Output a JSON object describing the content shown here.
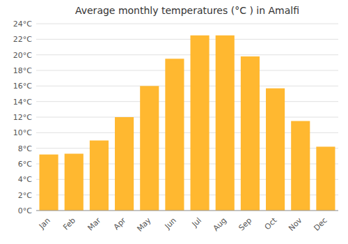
{
  "chart_data": {
    "type": "bar",
    "title": "Average monthly temperatures (°C ) in Amalfi",
    "categories": [
      "Jan",
      "Feb",
      "Mar",
      "Apr",
      "May",
      "Jun",
      "Jul",
      "Aug",
      "Sep",
      "Oct",
      "Nov",
      "Dec"
    ],
    "values": [
      7.2,
      7.3,
      9.0,
      12.0,
      16.0,
      19.5,
      22.5,
      22.5,
      19.8,
      15.7,
      11.5,
      8.2
    ],
    "color": "#FFB830",
    "ylim": [
      0,
      24
    ],
    "yticks": [
      {
        "value": 0,
        "label": "0°C"
      },
      {
        "value": 2,
        "label": "2°C"
      },
      {
        "value": 4,
        "label": "4°C"
      },
      {
        "value": 6,
        "label": "6°C"
      },
      {
        "value": 8,
        "label": "8°C"
      },
      {
        "value": 10,
        "label": "10°C"
      },
      {
        "value": 12,
        "label": "12°C"
      },
      {
        "value": 14,
        "label": "14°C"
      },
      {
        "value": 16,
        "label": "16°C"
      },
      {
        "value": 18,
        "label": "18°C"
      },
      {
        "value": 20,
        "label": "20°C"
      },
      {
        "value": 22,
        "label": "22°C"
      },
      {
        "value": 24,
        "label": "24°C"
      }
    ],
    "grid": true
  }
}
